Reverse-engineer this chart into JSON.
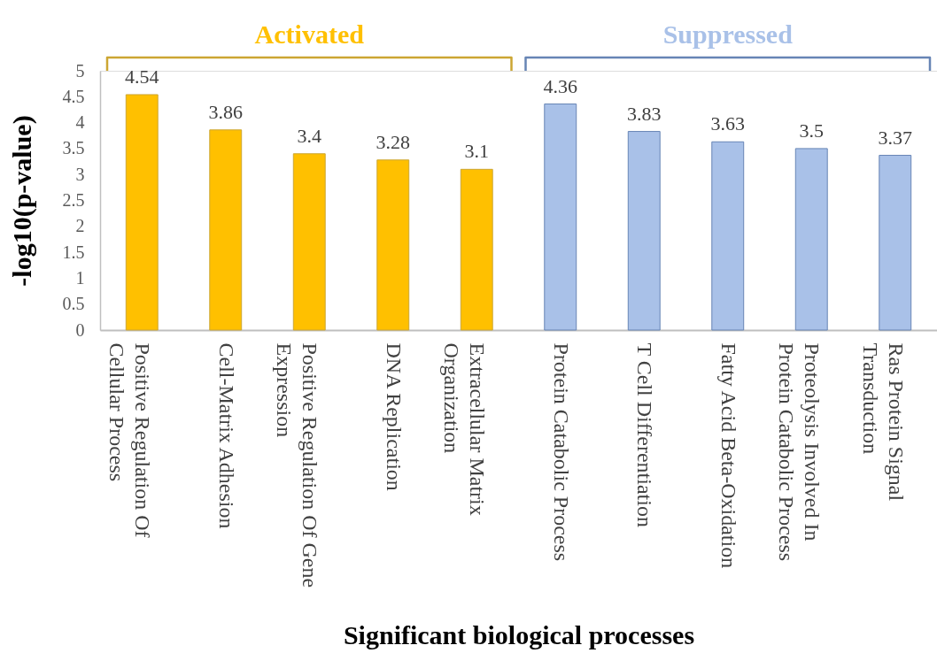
{
  "chart_data": {
    "type": "bar",
    "xlabel": "Significant biological processes",
    "ylabel": "-log10(p-value)",
    "categories": [
      "Positive Regulation Of Cellular Process",
      "Cell-Matrix Adhesion",
      "Positive Regulation Of Gene Expression",
      "DNA Replication",
      "Extracellular Matrix Organization",
      "Protein Catabolic Process",
      "T Cell Differentiation",
      "Fatty Acid Beta-Oxidation",
      "Proteolysis Involved In Protein Catabolic Process",
      "Ras Protein Signal Transduction"
    ],
    "series": [
      {
        "name": "Activated",
        "color": "#ffc000",
        "values": [
          4.54,
          3.86,
          3.4,
          3.28,
          3.1,
          null,
          null,
          null,
          null,
          null
        ]
      },
      {
        "name": "Suppressed",
        "color": "#a9c1e8",
        "values": [
          null,
          null,
          null,
          null,
          null,
          4.36,
          3.83,
          3.63,
          3.5,
          3.37
        ]
      }
    ],
    "ylim": [
      0,
      5
    ],
    "yticks": [
      0,
      0.5,
      1,
      1.5,
      2,
      2.5,
      3,
      3.5,
      4,
      4.5,
      5
    ],
    "data_labels": true
  }
}
